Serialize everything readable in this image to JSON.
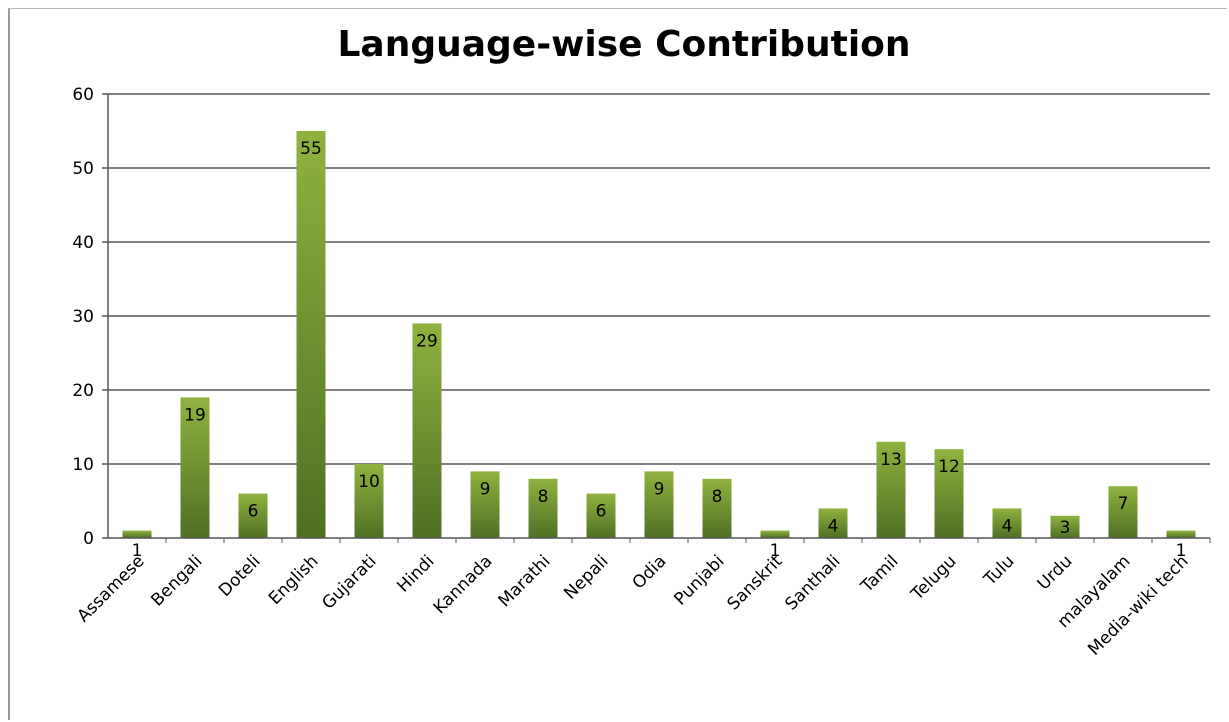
{
  "chart_data": {
    "type": "bar",
    "title": "Language-wise Contribution",
    "xlabel": "",
    "ylabel": "",
    "ylim": [
      0,
      60
    ],
    "yticks": [
      0,
      10,
      20,
      30,
      40,
      50,
      60
    ],
    "grid": true,
    "legend": "none",
    "bar_color_top": "#8fb23f",
    "bar_color_bottom": "#4f7024",
    "categories": [
      "Assamese",
      "Bengali",
      "Doteli",
      "English",
      "Gujarati",
      "Hindi",
      "Kannada",
      "Marathi",
      "Nepali",
      "Odia",
      "Punjabi",
      "Sanskrit",
      "Santhali",
      "Tamil",
      "Telugu",
      "Tulu",
      "Urdu",
      "malayalam",
      "Media-wiki tech"
    ],
    "values": [
      1,
      19,
      6,
      55,
      10,
      29,
      9,
      8,
      6,
      9,
      8,
      1,
      4,
      13,
      12,
      4,
      3,
      7,
      1
    ]
  }
}
